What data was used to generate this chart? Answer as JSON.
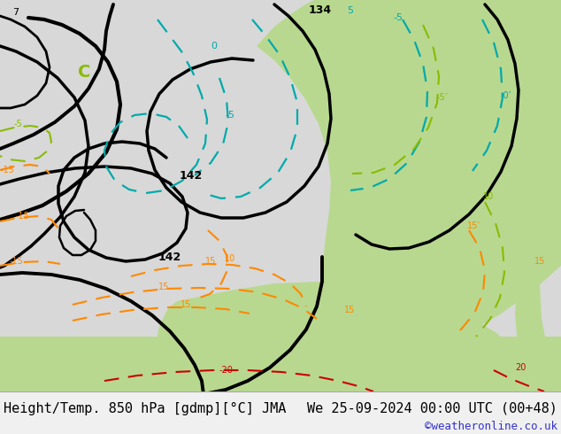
{
  "title_left": "Height/Temp. 850 hPa [gdmp][°C] JMA",
  "title_right": "We 25-09-2024 00:00 UTC (00+48)",
  "credit": "©weatheronline.co.uk",
  "bg_map": "#d8d8d8",
  "bg_green": "#b8d890",
  "bg_bottom": "#f0f0f0",
  "col_black": "#000000",
  "col_orange": "#ff8800",
  "col_red": "#cc0000",
  "col_cyan": "#00aaaa",
  "col_yg": "#88bb00",
  "col_credit": "#3333cc",
  "title_fs": 11,
  "credit_fs": 9,
  "fig_w": 6.34,
  "fig_h": 4.9,
  "dpi": 100
}
